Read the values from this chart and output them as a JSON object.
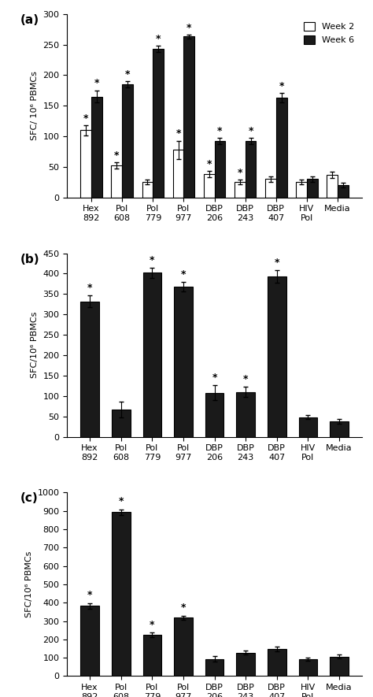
{
  "categories": [
    "Hex\n892",
    "Pol\n608",
    "Pol\n779",
    "Pol\n977",
    "DBP\n206",
    "DBP\n243",
    "DBP\n407",
    "HIV\nPol",
    "Media"
  ],
  "panel_a": {
    "week2_values": [
      110,
      52,
      25,
      78,
      38,
      25,
      30,
      25,
      37
    ],
    "week6_values": [
      165,
      185,
      243,
      263,
      92,
      92,
      163,
      30,
      20
    ],
    "week2_errors": [
      8,
      5,
      4,
      15,
      5,
      4,
      5,
      4,
      5
    ],
    "week6_errors": [
      10,
      5,
      5,
      3,
      5,
      5,
      8,
      4,
      4
    ],
    "ylim": [
      0,
      300
    ],
    "yticks": [
      0,
      50,
      100,
      150,
      200,
      250,
      300
    ],
    "ylabel": "SFC/ 10⁶ PBMCs",
    "stars_week2": [
      true,
      true,
      false,
      true,
      true,
      true,
      false,
      false,
      false
    ],
    "stars_week6": [
      true,
      true,
      true,
      true,
      true,
      true,
      true,
      false,
      false
    ]
  },
  "panel_b": {
    "values": [
      332,
      67,
      402,
      368,
      108,
      110,
      393,
      48,
      38
    ],
    "errors": [
      15,
      20,
      12,
      12,
      18,
      12,
      15,
      5,
      5
    ],
    "ylim": [
      0,
      450
    ],
    "yticks": [
      0,
      50,
      100,
      150,
      200,
      250,
      300,
      350,
      400,
      450
    ],
    "ylabel": "SFC/10⁶ PBMCs",
    "stars": [
      true,
      false,
      true,
      true,
      true,
      true,
      true,
      false,
      false
    ]
  },
  "panel_c": {
    "values": [
      383,
      893,
      225,
      318,
      93,
      128,
      148,
      92,
      107
    ],
    "errors": [
      15,
      15,
      12,
      12,
      15,
      12,
      12,
      8,
      10
    ],
    "ylim": [
      0,
      1000
    ],
    "yticks": [
      0,
      100,
      200,
      300,
      400,
      500,
      600,
      700,
      800,
      900,
      1000
    ],
    "ylabel": "SFC/10⁶ PBMCs",
    "stars": [
      true,
      true,
      true,
      true,
      false,
      false,
      false,
      false,
      false
    ]
  },
  "bar_color_white": "#ffffff",
  "bar_color_black": "#1a1a1a",
  "bar_edgecolor": "#000000",
  "panel_labels": [
    "(a)",
    "(b)",
    "(c)"
  ],
  "legend_week2": "Week 2",
  "legend_week6": "Week 6"
}
